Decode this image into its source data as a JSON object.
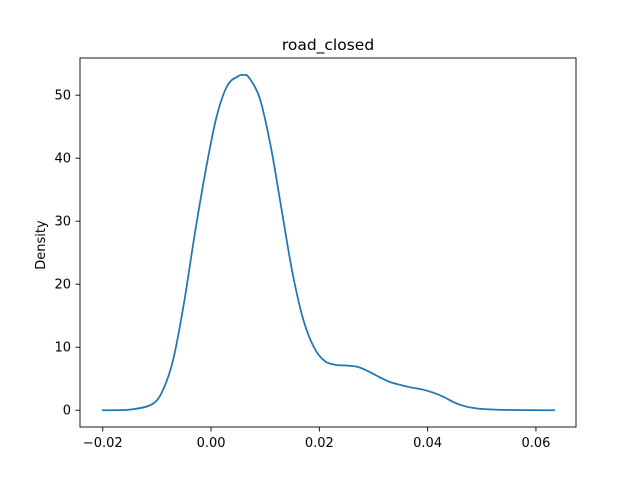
{
  "chart_data": {
    "type": "line",
    "title": "road_closed",
    "xlabel": "",
    "ylabel": "Density",
    "xlim": [
      -0.0242,
      0.0674
    ],
    "ylim": [
      -2.66,
      55.9
    ],
    "x_ticks": [
      -0.02,
      0.0,
      0.02,
      0.04,
      0.06
    ],
    "x_tick_labels": [
      "−0.02",
      "0.00",
      "0.02",
      "0.04",
      "0.06"
    ],
    "y_ticks": [
      0,
      10,
      20,
      30,
      40,
      50
    ],
    "y_tick_labels": [
      "0",
      "10",
      "20",
      "30",
      "40",
      "50"
    ],
    "grid": false,
    "legend": "none",
    "series": [
      {
        "color": "#1f77b4",
        "x": [
          -0.02,
          -0.015,
          -0.011,
          -0.009,
          -0.007,
          -0.005,
          -0.003,
          -0.001,
          0.001,
          0.003,
          0.005,
          0.006,
          0.007,
          0.009,
          0.011,
          0.013,
          0.015,
          0.017,
          0.019,
          0.021,
          0.023,
          0.025,
          0.027,
          0.029,
          0.031,
          0.033,
          0.035,
          0.037,
          0.039,
          0.041,
          0.043,
          0.045,
          0.047,
          0.049,
          0.051,
          0.053,
          0.056,
          0.06,
          0.0634
        ],
        "y": [
          0.0,
          0.1,
          0.9,
          3.0,
          8.0,
          17.0,
          28.0,
          38.0,
          46.5,
          51.5,
          53.0,
          53.2,
          52.8,
          49.5,
          42.0,
          32.0,
          22.0,
          14.5,
          10.0,
          7.8,
          7.2,
          7.1,
          6.9,
          6.2,
          5.3,
          4.5,
          4.0,
          3.6,
          3.3,
          2.8,
          2.1,
          1.2,
          0.6,
          0.3,
          0.15,
          0.08,
          0.03,
          0.01,
          0.0
        ]
      }
    ]
  }
}
